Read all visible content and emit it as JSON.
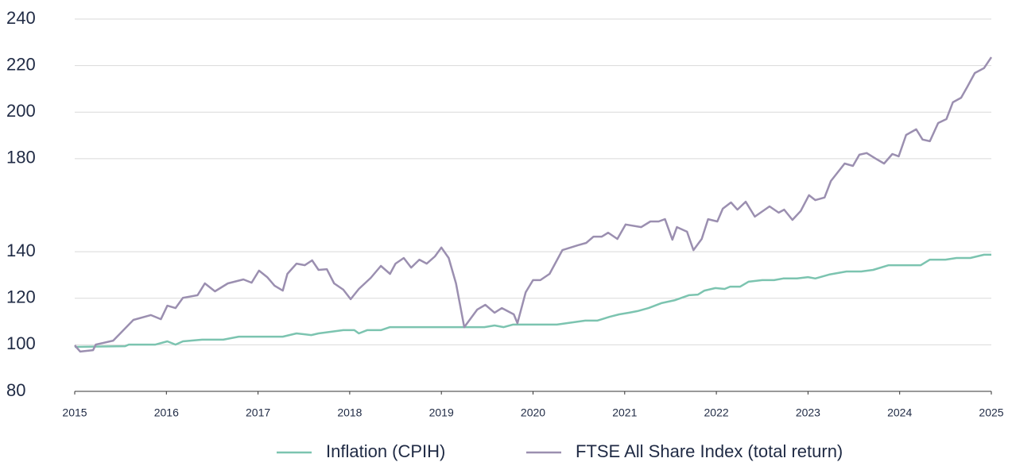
{
  "chart_data": {
    "type": "line",
    "xlim": [
      2015,
      2025
    ],
    "xticks": [
      2015,
      2016,
      2017,
      2018,
      2019,
      2020,
      2021,
      2022,
      2023,
      2024,
      2025
    ],
    "ylim": [
      80,
      240
    ],
    "yticks": [
      80,
      100,
      120,
      140,
      180,
      200,
      220,
      240
    ],
    "grid": true,
    "legend": "bottom",
    "series": [
      {
        "name": "Inflation (CPIH)",
        "color": "#7cc4b0",
        "x": [
          2015.0,
          2015.55,
          2015.59,
          2015.88,
          2016.01,
          2016.1,
          2016.18,
          2016.39,
          2016.62,
          2016.79,
          2017.27,
          2017.42,
          2017.58,
          2017.66,
          2017.93,
          2018.05,
          2018.1,
          2018.19,
          2018.34,
          2018.44,
          2019.2,
          2019.47,
          2019.58,
          2019.68,
          2019.78,
          2020.26,
          2020.57,
          2020.7,
          2020.84,
          2020.94,
          2021.05,
          2021.14,
          2021.26,
          2021.4,
          2021.55,
          2021.7,
          2021.8,
          2021.87,
          2021.99,
          2022.09,
          2022.15,
          2022.26,
          2022.35,
          2022.5,
          2022.63,
          2022.73,
          2022.88,
          2023.0,
          2023.08,
          2023.23,
          2023.42,
          2023.58,
          2023.71,
          2023.88,
          2024.23,
          2024.33,
          2024.5,
          2024.62,
          2024.77,
          2024.92,
          2025.0
        ],
        "values": [
          99.1,
          99.4,
          100.1,
          100.1,
          101.5,
          100.1,
          101.5,
          102.2,
          102.2,
          103.5,
          103.5,
          104.9,
          104.2,
          104.9,
          106.3,
          106.3,
          104.9,
          106.3,
          106.3,
          107.6,
          107.6,
          107.6,
          108.3,
          107.6,
          108.7,
          108.7,
          110.4,
          110.4,
          112.1,
          113.1,
          113.8,
          114.5,
          115.8,
          117.9,
          119.2,
          121.3,
          121.6,
          123.3,
          124.4,
          124.0,
          125.0,
          125.0,
          127.1,
          127.8,
          127.8,
          128.5,
          128.5,
          129.1,
          128.5,
          130.2,
          131.5,
          131.5,
          132.2,
          134.2,
          134.2,
          136.6,
          136.6,
          137.3,
          137.3,
          138.7,
          138.7
        ]
      },
      {
        "name": "FTSE All Share Index (total return)",
        "color": "#9b8fb0",
        "x": [
          2015.0,
          2015.06,
          2015.2,
          2015.23,
          2015.42,
          2015.64,
          2015.83,
          2015.94,
          2016.01,
          2016.1,
          2016.18,
          2016.34,
          2016.42,
          2016.53,
          2016.67,
          2016.84,
          2016.93,
          2017.01,
          2017.1,
          2017.18,
          2017.27,
          2017.32,
          2017.42,
          2017.51,
          2017.59,
          2017.66,
          2017.75,
          2017.83,
          2017.93,
          2018.01,
          2018.1,
          2018.23,
          2018.34,
          2018.44,
          2018.5,
          2018.59,
          2018.67,
          2018.76,
          2018.84,
          2018.93,
          2019.0,
          2019.08,
          2019.16,
          2019.25,
          2019.39,
          2019.48,
          2019.58,
          2019.66,
          2019.79,
          2019.83,
          2019.92,
          2020.0,
          2020.08,
          2020.18,
          2020.32,
          2020.49,
          2020.58,
          2020.66,
          2020.75,
          2020.82,
          2020.92,
          2021.01,
          2021.18,
          2021.28,
          2021.37,
          2021.44,
          2021.52,
          2021.57,
          2021.68,
          2021.75,
          2021.84,
          2021.91,
          2022.01,
          2022.07,
          2022.16,
          2022.23,
          2022.32,
          2022.42,
          2022.58,
          2022.68,
          2022.74,
          2022.83,
          2022.92,
          2023.01,
          2023.08,
          2023.18,
          2023.25,
          2023.4,
          2023.49,
          2023.56,
          2023.64,
          2023.74,
          2023.83,
          2023.92,
          2023.99,
          2024.07,
          2024.18,
          2024.25,
          2024.33,
          2024.42,
          2024.51,
          2024.58,
          2024.67,
          2024.74,
          2024.82,
          2024.92,
          2025.0
        ],
        "values": [
          99.8,
          97.1,
          97.7,
          100.1,
          101.8,
          110.7,
          112.8,
          111.0,
          116.8,
          115.8,
          120.2,
          121.3,
          126.4,
          123.0,
          126.4,
          128.1,
          126.7,
          131.9,
          129.1,
          125.4,
          123.3,
          130.5,
          134.9,
          134.2,
          136.3,
          132.2,
          132.5,
          126.4,
          123.7,
          119.6,
          124.0,
          128.8,
          133.9,
          130.5,
          134.9,
          137.3,
          133.2,
          136.6,
          134.9,
          138.0,
          141.8,
          137.3,
          126.4,
          107.6,
          115.1,
          117.2,
          113.8,
          115.8,
          113.1,
          109.3,
          122.6,
          127.8,
          127.8,
          130.5,
          140.7,
          142.8,
          143.8,
          146.5,
          146.5,
          148.2,
          145.5,
          151.7,
          150.6,
          153.0,
          153.0,
          154.0,
          145.2,
          150.6,
          148.6,
          140.7,
          145.5,
          154.0,
          153.0,
          158.5,
          161.2,
          158.1,
          161.5,
          155.1,
          159.5,
          156.8,
          158.1,
          153.7,
          157.5,
          164.3,
          162.2,
          163.3,
          170.4,
          177.9,
          176.9,
          181.7,
          182.4,
          180.0,
          177.9,
          182.0,
          181.0,
          190.2,
          192.6,
          188.2,
          187.5,
          195.3,
          197.0,
          204.2,
          206.2,
          211.0,
          216.8,
          218.9,
          223.6
        ]
      }
    ]
  }
}
